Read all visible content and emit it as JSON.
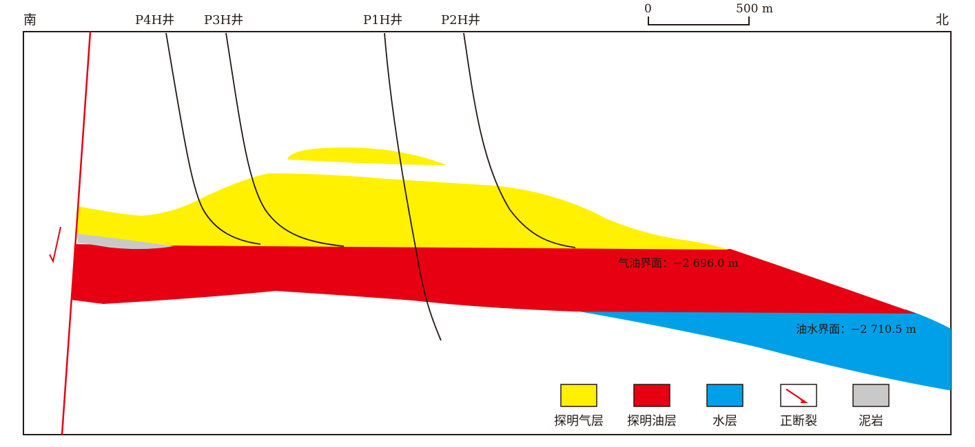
{
  "directions": {
    "left": "南",
    "right": "北"
  },
  "scale_bar": {
    "zero": "0",
    "length": "500 m"
  },
  "wells": [
    {
      "label": "P4H井"
    },
    {
      "label": "P3H井"
    },
    {
      "label": "P1H井"
    },
    {
      "label": "P2H井"
    }
  ],
  "contacts": {
    "gas_oil": "气油界面：−2 696.0 m",
    "oil_water": "油水界面：−2 710.5 m"
  },
  "legend": [
    {
      "label": "探明气层",
      "color": "#fff100"
    },
    {
      "label": "探明油层",
      "color": "#e60012"
    },
    {
      "label": "水层",
      "color": "#00a0e9"
    },
    {
      "label": "正断裂",
      "color": "#e60012"
    },
    {
      "label": "泥岩",
      "color": "#c9c9c9"
    }
  ],
  "colors": {
    "gas": "#fff100",
    "oil": "#e60012",
    "water": "#00a0e9",
    "mudstone": "#c9c9c9",
    "fault": "#e60012",
    "well": "#231815"
  }
}
